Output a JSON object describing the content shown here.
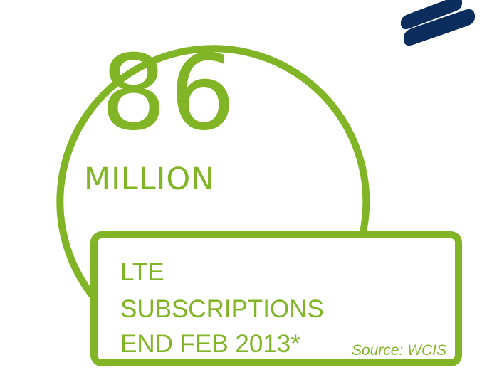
{
  "headline": {
    "value": "86",
    "unit": "MILLION"
  },
  "info": {
    "line1": "LTE",
    "line2": "SUBSCRIPTIONS",
    "line3": "END FEB 2013*",
    "source": "Source: WCIS"
  },
  "colors": {
    "accent": "#82b526",
    "brand": "#0b2d5e",
    "background": "#ffffff"
  },
  "logo": {
    "icon": "brand-stripes-icon"
  }
}
